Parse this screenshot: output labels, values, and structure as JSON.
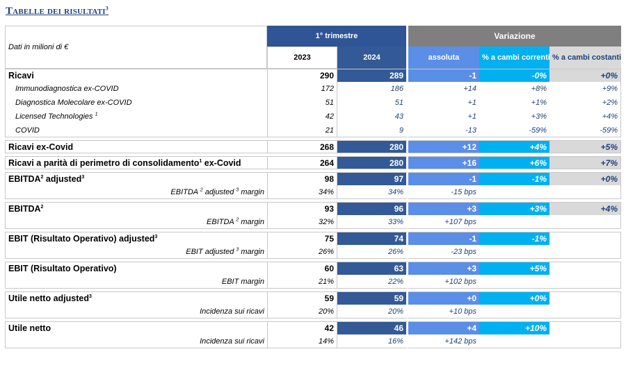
{
  "title": {
    "text": "Tabelle dei risultati",
    "sup": "3"
  },
  "header": {
    "label": "Dati in milioni di €",
    "trimestre": "1° trimestre",
    "variazione": "Variazione",
    "y2023": "2023",
    "y2024": "2024",
    "assoluta": "assoluta",
    "correnti": "% a cambi correnti",
    "costanti": "% a cambi costanti"
  },
  "rows": [
    {
      "type": "bold",
      "label": "Ricavi",
      "sup": "",
      "label_tail": "",
      "v2023": "290",
      "v2024": "289",
      "abs": "-1",
      "cor": "-0%",
      "cst": "+0%",
      "group_start": true
    },
    {
      "type": "sub",
      "label": "Immunodiagnostica ex-COVID",
      "sup": "",
      "label_tail": "",
      "v2023": "172",
      "v2024": "186",
      "abs": "+14",
      "cor": "+8%",
      "cst": "+9%"
    },
    {
      "type": "sub",
      "label": "Diagnostica Molecolare ex-COVID",
      "sup": "",
      "label_tail": "",
      "v2023": "51",
      "v2024": "51",
      "abs": "+1",
      "cor": "+1%",
      "cst": "+2%"
    },
    {
      "type": "sub",
      "label": "Licensed Technologies ",
      "sup": "1",
      "label_tail": "",
      "v2023": "42",
      "v2024": "43",
      "abs": "+1",
      "cor": "+3%",
      "cst": "+4%"
    },
    {
      "type": "sub",
      "label": "COVID",
      "sup": "",
      "label_tail": "",
      "v2023": "21",
      "v2024": "9",
      "abs": "-13",
      "cor": "-59%",
      "cst": "-59%",
      "group_end": true
    },
    {
      "type": "bold",
      "label": "Ricavi ex-Covid",
      "sup": "",
      "label_tail": "",
      "v2023": "268",
      "v2024": "280",
      "abs": "+12",
      "cor": "+4%",
      "cst": "+5%",
      "group_start": true,
      "group_end": true
    },
    {
      "type": "bold",
      "label": "Ricavi a parità di perimetro di consolidamento",
      "sup": "1",
      "label_tail": " ex-Covid",
      "v2023": "264",
      "v2024": "280",
      "abs": "+16",
      "cor": "+6%",
      "cst": "+7%",
      "group_start": true,
      "group_end": true
    },
    {
      "type": "bold",
      "label": "EBITDA",
      "sup": "2",
      "label_tail": " adjusted",
      "sup2": "3",
      "v2023": "98",
      "v2024": "97",
      "abs": "-1",
      "cor": "-1%",
      "cst": "+0%",
      "group_start": true
    },
    {
      "type": "mrg",
      "label": "EBITDA ",
      "sup": "2",
      "label_tail": " adjusted ",
      "sup2": "3",
      "label_tail2": " margin",
      "v2023": "34%",
      "v2024": "34%",
      "abs": "-15 bps",
      "cor": "",
      "cst": "",
      "group_end": true
    },
    {
      "type": "bold",
      "label": "EBITDA",
      "sup": "2",
      "label_tail": "",
      "v2023": "93",
      "v2024": "96",
      "abs": "+3",
      "cor": "+3%",
      "cst": "+4%",
      "group_start": true
    },
    {
      "type": "mrg",
      "label": "EBITDA ",
      "sup": "2",
      "label_tail": " margin",
      "v2023": "32%",
      "v2024": "33%",
      "abs": "+107 bps",
      "cor": "",
      "cst": "",
      "group_end": true
    },
    {
      "type": "bold",
      "label": "EBIT (Risultato Operativo) adjusted",
      "sup": "3",
      "label_tail": "",
      "v2023": "75",
      "v2024": "74",
      "abs": "-1",
      "cor": "-1%",
      "cst": "",
      "group_start": true
    },
    {
      "type": "mrg",
      "label": "EBIT adjusted ",
      "sup": "3",
      "label_tail": " margin",
      "v2023": "26%",
      "v2024": "26%",
      "abs": "-23 bps",
      "cor": "",
      "cst": "",
      "group_end": true
    },
    {
      "type": "bold",
      "label": "EBIT (Risultato Operativo)",
      "sup": "",
      "label_tail": "",
      "v2023": "60",
      "v2024": "63",
      "abs": "+3",
      "cor": "+5%",
      "cst": "",
      "group_start": true
    },
    {
      "type": "mrg",
      "label": "EBIT margin",
      "sup": "",
      "label_tail": "",
      "v2023": "21%",
      "v2024": "22%",
      "abs": "+102 bps",
      "cor": "",
      "cst": "",
      "group_end": true
    },
    {
      "type": "bold",
      "label": "Utile netto adjusted",
      "sup": "3",
      "label_tail": "",
      "v2023": "59",
      "v2024": "59",
      "abs": "+0",
      "cor": "+0%",
      "cst": "",
      "group_start": true
    },
    {
      "type": "mrg",
      "label": "Incidenza sui ricavi",
      "sup": "",
      "label_tail": "",
      "v2023": "20%",
      "v2024": "20%",
      "abs": "+10 bps",
      "cor": "",
      "cst": "",
      "group_end": true
    },
    {
      "type": "bold",
      "label": "Utile netto",
      "sup": "",
      "label_tail": "",
      "v2023": "42",
      "v2024": "46",
      "abs": "+4",
      "cor": "+10%",
      "cst": "",
      "group_start": true
    },
    {
      "type": "mrg",
      "label": "Incidenza sui ricavi",
      "sup": "",
      "label_tail": "",
      "v2023": "14%",
      "v2024": "16%",
      "abs": "+142 bps",
      "cor": "",
      "cst": "",
      "group_end": true
    }
  ]
}
